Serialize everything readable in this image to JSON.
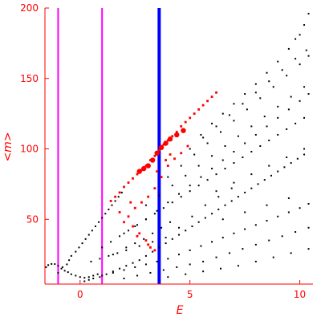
{
  "chart_data": {
    "type": "scatter",
    "xlabel": "E",
    "ylabel": "<m>",
    "xlim": [
      -1.6,
      10.6
    ],
    "ylim": [
      4,
      200
    ],
    "x_ticks": [
      0,
      5,
      10
    ],
    "y_ticks": [
      50,
      100,
      150,
      200
    ],
    "grid": false,
    "colors": {
      "axis": "#ff0000",
      "background_points": "#000000",
      "highlight_points": "#ff0000",
      "blue_line": "#0000ff",
      "magenta_lines": "#ff00ff"
    },
    "vertical_lines": [
      {
        "x": -1.0,
        "color": "#ff00ff"
      },
      {
        "x": 1.0,
        "color": "#ff00ff"
      },
      {
        "x": 3.6,
        "color": "#0000ff"
      }
    ],
    "series": [
      {
        "role": "background",
        "color": "#000000",
        "points": [
          [
            -1.55,
            16
          ],
          [
            -1.45,
            17.5
          ],
          [
            -1.3,
            18.3
          ],
          [
            -1.15,
            18.2
          ],
          [
            -1.0,
            17
          ],
          [
            -0.85,
            15
          ],
          [
            -0.7,
            13.5
          ],
          [
            -0.55,
            12.5
          ],
          [
            -0.4,
            11
          ],
          [
            -0.2,
            10
          ],
          [
            0,
            9
          ],
          [
            0.2,
            8.5
          ],
          [
            0.4,
            9
          ],
          [
            0.6,
            10
          ],
          [
            0.8,
            11
          ],
          [
            -1.0,
            12
          ],
          [
            -0.8,
            16
          ],
          [
            -0.6,
            18
          ],
          [
            -0.5,
            21
          ],
          [
            -0.4,
            24
          ],
          [
            -0.2,
            27
          ],
          [
            -0.05,
            30
          ],
          [
            0.1,
            33
          ],
          [
            0.25,
            36
          ],
          [
            0.4,
            39
          ],
          [
            0.55,
            42
          ],
          [
            0.7,
            45
          ],
          [
            0.85,
            48
          ],
          [
            1.0,
            51
          ],
          [
            1.15,
            54
          ],
          [
            1.3,
            57
          ],
          [
            1.45,
            60
          ],
          [
            1.6,
            63
          ],
          [
            1.75,
            66
          ],
          [
            1.9,
            69
          ],
          [
            0.2,
            6
          ],
          [
            0.4,
            7
          ],
          [
            0.6,
            8
          ],
          [
            0.9,
            9
          ],
          [
            1.2,
            11
          ],
          [
            1.5,
            13
          ],
          [
            1.8,
            15
          ],
          [
            2.1,
            17
          ],
          [
            2.4,
            19
          ],
          [
            2.7,
            21
          ],
          [
            3.0,
            24
          ],
          [
            3.3,
            27
          ],
          [
            3.6,
            30
          ],
          [
            3.9,
            33
          ],
          [
            4.2,
            36
          ],
          [
            4.5,
            39
          ],
          [
            4.8,
            42
          ],
          [
            5.1,
            45
          ],
          [
            5.4,
            48
          ],
          [
            5.7,
            51
          ],
          [
            6.0,
            54
          ],
          [
            6.3,
            57
          ],
          [
            6.6,
            60
          ],
          [
            6.9,
            63
          ],
          [
            7.2,
            66
          ],
          [
            7.5,
            69
          ],
          [
            7.8,
            72
          ],
          [
            8.1,
            75
          ],
          [
            8.4,
            78
          ],
          [
            8.7,
            81
          ],
          [
            9.0,
            84
          ],
          [
            9.3,
            87
          ],
          [
            9.6,
            90
          ],
          [
            9.9,
            93
          ],
          [
            10.2,
            96
          ],
          [
            1.0,
            10
          ],
          [
            1.5,
            12
          ],
          [
            2.0,
            14
          ],
          [
            2.5,
            16
          ],
          [
            3.0,
            18
          ],
          [
            3.5,
            20
          ],
          [
            4.0,
            22
          ],
          [
            4.5,
            25
          ],
          [
            5.0,
            28
          ],
          [
            5.5,
            31
          ],
          [
            6.0,
            34
          ],
          [
            6.5,
            37
          ],
          [
            7.0,
            40
          ],
          [
            7.5,
            43
          ],
          [
            8.0,
            46
          ],
          [
            8.5,
            49
          ],
          [
            9.0,
            52
          ],
          [
            9.5,
            55
          ],
          [
            10.0,
            58
          ],
          [
            10.4,
            61
          ],
          [
            2.0,
            8
          ],
          [
            2.6,
            10
          ],
          [
            3.2,
            12
          ],
          [
            3.8,
            14
          ],
          [
            4.4,
            16
          ],
          [
            5.0,
            18
          ],
          [
            5.6,
            20
          ],
          [
            6.2,
            23
          ],
          [
            6.8,
            26
          ],
          [
            7.4,
            29
          ],
          [
            8.0,
            32
          ],
          [
            8.6,
            35
          ],
          [
            9.2,
            38
          ],
          [
            9.8,
            41
          ],
          [
            10.4,
            44
          ],
          [
            4.0,
            9
          ],
          [
            4.8,
            11
          ],
          [
            5.6,
            13
          ],
          [
            6.4,
            15
          ],
          [
            7.2,
            17
          ],
          [
            8.0,
            20
          ],
          [
            8.8,
            23
          ],
          [
            9.6,
            26
          ],
          [
            10.4,
            29
          ],
          [
            1.0,
            30
          ],
          [
            1.4,
            34
          ],
          [
            1.8,
            38
          ],
          [
            2.2,
            42
          ],
          [
            2.6,
            46
          ],
          [
            3.0,
            50
          ],
          [
            3.4,
            54
          ],
          [
            3.8,
            58
          ],
          [
            4.2,
            62
          ],
          [
            4.6,
            66
          ],
          [
            5.0,
            70
          ],
          [
            5.4,
            74
          ],
          [
            5.8,
            78
          ],
          [
            6.2,
            82
          ],
          [
            6.6,
            86
          ],
          [
            7.0,
            90
          ],
          [
            7.4,
            94
          ],
          [
            7.8,
            98
          ],
          [
            8.2,
            102
          ],
          [
            8.6,
            106
          ],
          [
            9.0,
            110
          ],
          [
            9.4,
            114
          ],
          [
            9.8,
            118
          ],
          [
            10.2,
            122
          ],
          [
            2.0,
            40
          ],
          [
            2.5,
            45
          ],
          [
            3.0,
            50
          ],
          [
            3.5,
            56
          ],
          [
            4.0,
            62
          ],
          [
            4.5,
            68
          ],
          [
            5.0,
            74
          ],
          [
            5.5,
            80
          ],
          [
            6.0,
            86
          ],
          [
            6.5,
            92
          ],
          [
            7.0,
            98
          ],
          [
            7.5,
            104
          ],
          [
            8.0,
            110
          ],
          [
            8.5,
            116
          ],
          [
            9.0,
            122
          ],
          [
            9.5,
            128
          ],
          [
            10.0,
            134
          ],
          [
            10.4,
            139
          ],
          [
            3.0,
            60
          ],
          [
            3.6,
            67
          ],
          [
            4.2,
            74
          ],
          [
            4.8,
            81
          ],
          [
            5.4,
            88
          ],
          [
            6.0,
            95
          ],
          [
            6.6,
            102
          ],
          [
            7.2,
            109
          ],
          [
            7.8,
            116
          ],
          [
            8.4,
            123
          ],
          [
            9.0,
            130
          ],
          [
            9.6,
            137
          ],
          [
            10.2,
            144
          ],
          [
            4.0,
            80
          ],
          [
            4.6,
            88
          ],
          [
            5.2,
            96
          ],
          [
            5.8,
            104
          ],
          [
            6.4,
            112
          ],
          [
            7.0,
            120
          ],
          [
            7.6,
            128
          ],
          [
            8.2,
            136
          ],
          [
            8.8,
            144
          ],
          [
            9.4,
            152
          ],
          [
            10.0,
            160
          ],
          [
            10.4,
            166
          ],
          [
            5.0,
            100
          ],
          [
            5.6,
            108
          ],
          [
            6.2,
            116
          ],
          [
            6.8,
            124
          ],
          [
            7.4,
            132
          ],
          [
            8.0,
            140
          ],
          [
            8.6,
            148
          ],
          [
            9.2,
            156
          ],
          [
            9.8,
            164
          ],
          [
            10.3,
            170
          ],
          [
            5.5,
            110
          ],
          [
            6.0,
            118
          ],
          [
            6.5,
            125
          ],
          [
            7.0,
            132
          ],
          [
            7.5,
            139
          ],
          [
            8.0,
            146
          ],
          [
            8.5,
            154
          ],
          [
            9.0,
            162
          ],
          [
            9.5,
            171
          ],
          [
            10.0,
            181
          ],
          [
            10.4,
            196
          ],
          [
            10.2,
            188
          ],
          [
            9.8,
            178
          ],
          [
            6.2,
            70
          ],
          [
            7.0,
            76
          ],
          [
            7.8,
            82
          ],
          [
            8.6,
            88
          ],
          [
            9.4,
            94
          ],
          [
            10.2,
            100
          ],
          [
            6.5,
            50
          ],
          [
            7.5,
            55
          ],
          [
            8.5,
            60
          ],
          [
            9.5,
            65
          ],
          [
            1.5,
            25
          ],
          [
            2.1,
            28
          ],
          [
            2.7,
            31
          ],
          [
            3.3,
            34
          ],
          [
            3.9,
            37
          ],
          [
            4.5,
            44
          ],
          [
            5.1,
            52
          ],
          [
            5.7,
            60
          ],
          [
            6.3,
            66
          ],
          [
            6.9,
            72
          ],
          [
            0.5,
            20
          ],
          [
            0.9,
            22
          ],
          [
            1.3,
            24
          ],
          [
            1.7,
            26
          ],
          [
            2.1,
            30
          ],
          [
            2.5,
            33
          ],
          [
            2.9,
            36
          ],
          [
            3.3,
            40
          ],
          [
            3.7,
            44
          ],
          [
            4.1,
            48
          ]
        ]
      },
      {
        "role": "highlight",
        "color": "#ff0000",
        "points": [
          [
            1.4,
            63
          ],
          [
            1.6,
            66
          ],
          [
            1.8,
            69
          ],
          [
            2.0,
            73
          ],
          [
            2.2,
            76
          ],
          [
            2.4,
            79
          ],
          [
            2.6,
            82
          ],
          [
            2.8,
            85
          ],
          [
            3.0,
            88
          ],
          [
            3.2,
            92
          ],
          [
            3.4,
            95
          ],
          [
            3.6,
            99
          ],
          [
            3.8,
            103
          ],
          [
            4.0,
            106
          ],
          [
            4.2,
            109
          ],
          [
            4.4,
            112
          ],
          [
            4.6,
            116
          ],
          [
            4.8,
            119
          ],
          [
            5.0,
            122
          ],
          [
            5.2,
            125
          ],
          [
            5.4,
            128
          ],
          [
            5.6,
            131
          ],
          [
            5.8,
            134
          ],
          [
            6.0,
            137
          ],
          [
            6.2,
            140
          ],
          [
            2.2,
            52
          ],
          [
            2.5,
            58
          ],
          [
            2.8,
            62
          ],
          [
            3.1,
            66
          ],
          [
            3.4,
            72
          ],
          [
            3.7,
            80
          ],
          [
            4.0,
            88
          ],
          [
            4.3,
            93
          ],
          [
            4.6,
            97
          ],
          [
            4.9,
            102
          ],
          [
            2.4,
            45
          ],
          [
            2.7,
            40
          ],
          [
            3.0,
            35
          ],
          [
            3.2,
            30
          ],
          [
            3.4,
            28
          ],
          [
            2.0,
            48
          ],
          [
            2.6,
            38
          ],
          [
            3.1,
            32
          ],
          [
            1.8,
            55
          ],
          [
            2.3,
            62
          ],
          [
            3.5,
            84
          ],
          [
            3.9,
            92
          ],
          [
            4.1,
            96
          ]
        ],
        "large_points": [
          [
            3.1,
            88
          ],
          [
            3.3,
            92
          ],
          [
            3.5,
            97
          ],
          [
            3.7,
            101
          ],
          [
            3.9,
            104
          ],
          [
            4.1,
            107
          ],
          [
            4.4,
            110
          ],
          [
            4.7,
            113
          ],
          [
            2.7,
            84
          ],
          [
            2.9,
            86
          ]
        ]
      }
    ]
  }
}
